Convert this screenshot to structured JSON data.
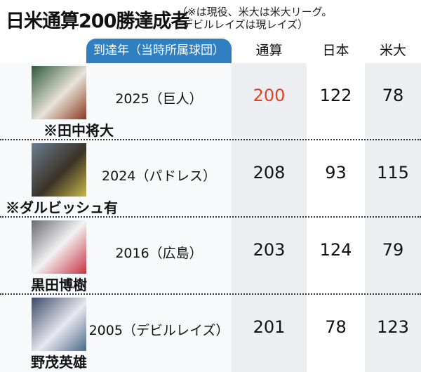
{
  "title": "日米通算200勝達成者",
  "note_line1": "（※は現役、米大は米大リーグ。",
  "note_line2": "デビルレイズは現レイズ）",
  "colors": {
    "header_tab": "#2f7fc1",
    "highlight": "#e0451f"
  },
  "chart_data": {
    "type": "table",
    "columns": [
      "到達年（当時所属球団）",
      "通算",
      "日本",
      "米大"
    ],
    "rows": [
      {
        "name": "※田中将大",
        "year": "2025（巨人）",
        "total": "200",
        "japan": "122",
        "mlb": "78",
        "highlight_total": true
      },
      {
        "name": "※ダルビッシュ有",
        "year": "2024（パドレス）",
        "total": "208",
        "japan": "93",
        "mlb": "115"
      },
      {
        "name": "黒田博樹",
        "year": "2016（広島）",
        "total": "203",
        "japan": "124",
        "mlb": "79"
      },
      {
        "name": "野茂英雄",
        "year": "2005（デビルレイズ）",
        "total": "201",
        "japan": "78",
        "mlb": "123"
      }
    ]
  }
}
